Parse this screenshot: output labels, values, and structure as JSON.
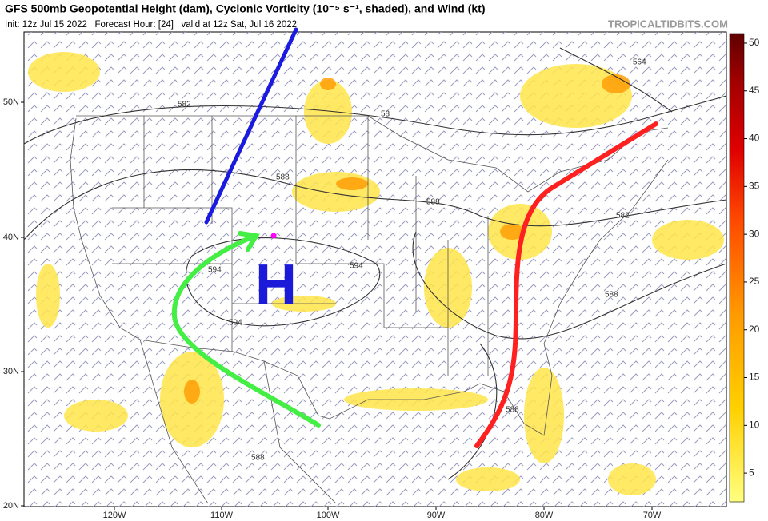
{
  "header": {
    "title": "GFS 500mb Geopotential Height (dam), Cyclonic Vorticity (10⁻⁵ s⁻¹, shaded), and Wind (kt)",
    "init": "Init: 12z Jul 15 2022   Forecast Hour: [24]   valid at 12z Sat, Jul 16 2022",
    "credit": "TROPICALTIDBITS.COM"
  },
  "colorbar": {
    "lim": [
      2,
      51
    ],
    "ticks": [
      5,
      10,
      15,
      20,
      25,
      30,
      35,
      40,
      45,
      50
    ]
  },
  "map": {
    "lon_labels": [
      "120W",
      "110W",
      "100W",
      "90W",
      "80W",
      "70W"
    ],
    "lat_labels": [
      "50N",
      "40N",
      "30N",
      "20N"
    ],
    "contour_labels": [
      "564",
      "582",
      "58",
      "588",
      "588",
      "594",
      "594",
      "594",
      "582",
      "588",
      "588",
      "588"
    ],
    "high_label": "H"
  }
}
